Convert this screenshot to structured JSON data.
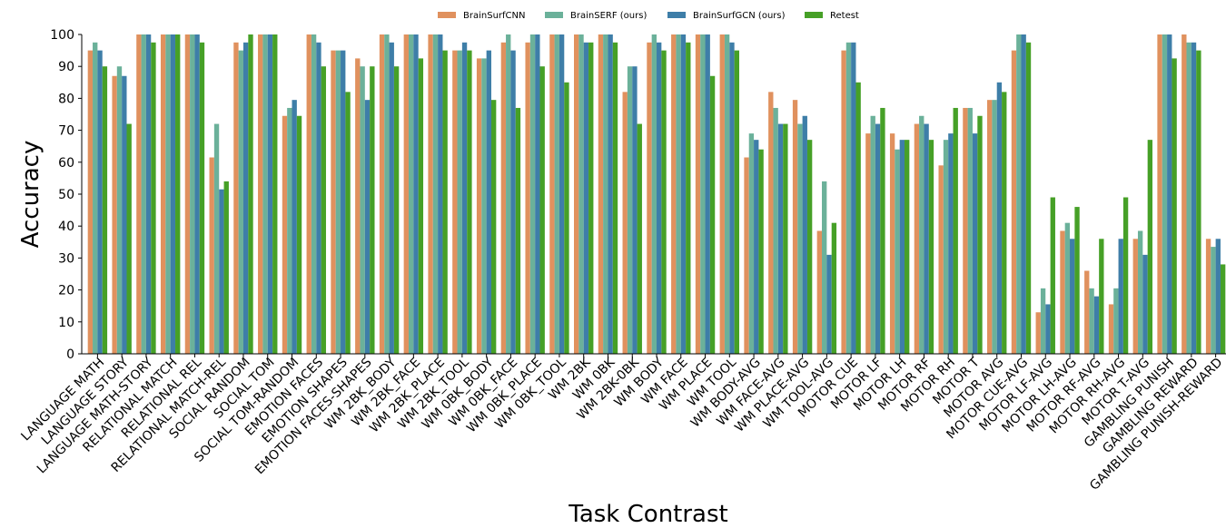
{
  "chart_data": {
    "type": "bar",
    "title": "",
    "xlabel": "Task Contrast",
    "ylabel": "Accuracy",
    "ylim": [
      0,
      100
    ],
    "yticks": [
      0,
      10,
      20,
      30,
      40,
      50,
      60,
      70,
      80,
      90,
      100
    ],
    "grid": false,
    "legend_position": "top-center",
    "categories": [
      "LANGUAGE MATH",
      "LANGUAGE STORY",
      "LANGUAGE MATH-STORY",
      "RELATIONAL MATCH",
      "RELATIONAL REL",
      "RELATIONAL MATCH-REL",
      "SOCIAL RANDOM",
      "SOCIAL TOM",
      "SOCIAL TOM-RANDOM",
      "EMOTION FACES",
      "EMOTION SHAPES",
      "EMOTION FACES-SHAPES",
      "WM 2BK_BODY",
      "WM 2BK_FACE",
      "WM 2BK_PLACE",
      "WM 2BK_TOOL",
      "WM 0BK_BODY",
      "WM 0BK_FACE",
      "WM 0BK_PLACE",
      "WM 0BK_TOOL",
      "WM 2BK",
      "WM 0BK",
      "WM 2BK-0BK",
      "WM BODY",
      "WM FACE",
      "WM PLACE",
      "WM TOOL",
      "WM BODY-AVG",
      "WM FACE-AVG",
      "WM PLACE-AVG",
      "WM TOOL-AVG",
      "MOTOR CUE",
      "MOTOR LF",
      "MOTOR LH",
      "MOTOR RF",
      "MOTOR RH",
      "MOTOR T",
      "MOTOR AVG",
      "MOTOR CUE-AVG",
      "MOTOR LF-AVG",
      "MOTOR LH-AVG",
      "MOTOR RF-AVG",
      "MOTOR RH-AVG",
      "MOTOR T-AVG",
      "GAMBLING PUNISH",
      "GAMBLING REWARD",
      "GAMBLING PUNISH-REWARD"
    ],
    "series": [
      {
        "name": "BrainSurfCNN",
        "color": "#e0915e",
        "values": [
          95,
          87,
          100,
          100,
          100,
          61.5,
          97.5,
          100,
          74.5,
          100,
          95,
          92.5,
          100,
          100,
          100,
          95,
          92.5,
          97.5,
          97.5,
          100,
          100,
          100,
          82,
          97.5,
          100,
          100,
          100,
          61.5,
          82,
          79.5,
          38.5,
          95,
          69,
          69,
          72,
          59,
          77,
          79.5,
          95,
          13,
          38.5,
          26,
          15.5,
          36,
          100,
          100,
          36
        ]
      },
      {
        "name": "BrainSERF (ours)",
        "color": "#6bb19a",
        "values": [
          97.5,
          90,
          100,
          100,
          100,
          72,
          95,
          100,
          77,
          100,
          95,
          90,
          100,
          100,
          100,
          95,
          92.5,
          100,
          100,
          100,
          100,
          100,
          90,
          100,
          100,
          100,
          100,
          69,
          77,
          72,
          54,
          97.5,
          74.5,
          64,
          74.5,
          67,
          77,
          79.5,
          100,
          20.5,
          41,
          20.5,
          20.5,
          38.5,
          100,
          97.5,
          33.5
        ]
      },
      {
        "name": "BrainSurfGCN (ours)",
        "color": "#3e7ea8",
        "values": [
          95,
          87,
          100,
          100,
          100,
          51.5,
          97.5,
          100,
          79.5,
          97.5,
          95,
          79.5,
          97.5,
          100,
          100,
          97.5,
          95,
          95,
          100,
          100,
          97.5,
          100,
          90,
          97.5,
          100,
          100,
          97.5,
          67,
          72,
          74.5,
          31,
          97.5,
          72,
          67,
          72,
          69,
          69,
          85,
          100,
          15.5,
          36,
          18,
          36,
          31,
          100,
          97.5,
          36
        ]
      },
      {
        "name": "Retest",
        "color": "#46a027",
        "values": [
          90,
          72,
          97.5,
          100,
          97.5,
          54,
          100,
          100,
          74.5,
          90,
          82,
          90,
          90,
          92.5,
          95,
          95,
          79.5,
          77,
          90,
          85,
          97.5,
          97.5,
          72,
          95,
          97.5,
          87,
          95,
          64,
          72,
          67,
          41,
          85,
          77,
          67,
          67,
          77,
          74.5,
          82,
          97.5,
          49,
          46,
          36,
          49,
          67,
          92.5,
          95,
          28
        ]
      }
    ]
  }
}
